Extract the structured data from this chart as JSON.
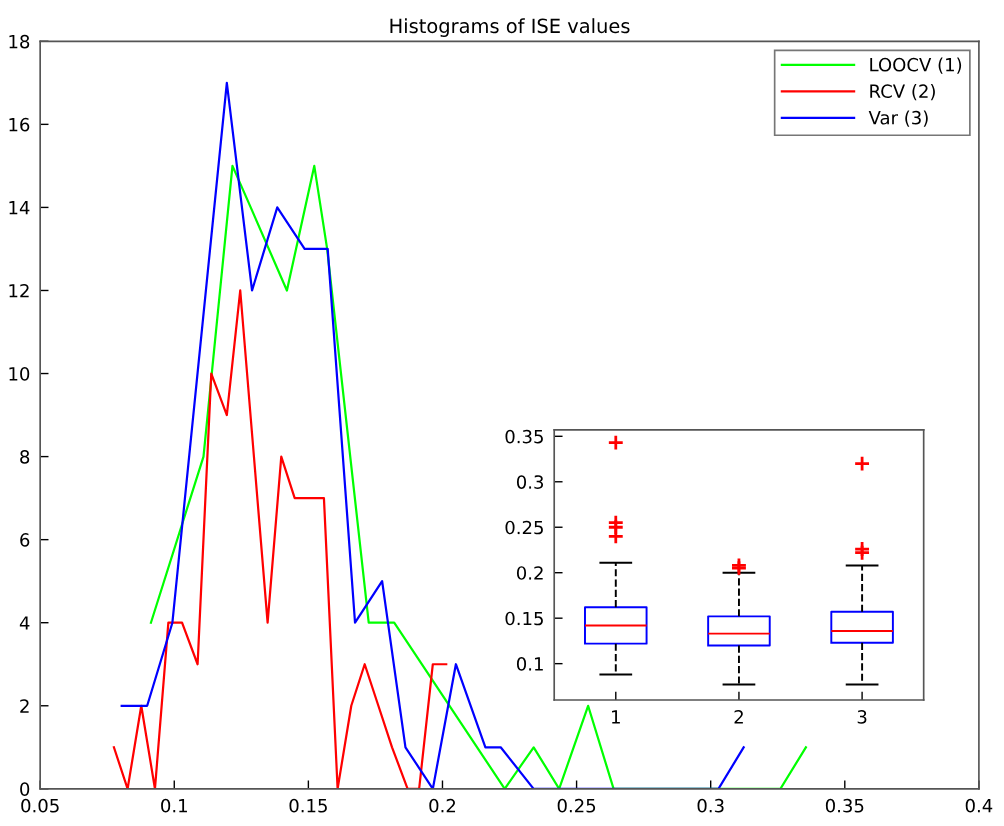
{
  "chart_data": [
    {
      "type": "line",
      "title": "Histograms of ISE values",
      "xlim": [
        0.05,
        0.4
      ],
      "xticks": [
        0.05,
        0.1,
        0.15,
        0.2,
        0.25,
        0.3,
        0.35,
        0.4
      ],
      "ylim": [
        0,
        18
      ],
      "yticks": [
        0,
        2,
        4,
        6,
        8,
        10,
        12,
        14,
        16,
        18
      ],
      "legend": "top right",
      "grid": false,
      "series": [
        {
          "name": "LOOCV (1)",
          "color": "#00ff00",
          "x": [
            0.0913,
            0.1109,
            0.1217,
            0.1285,
            0.142,
            0.1522,
            0.157,
            0.1725,
            0.182,
            0.2232,
            0.234,
            0.2435,
            0.2543,
            0.2638,
            0.326,
            0.3355
          ],
          "values": [
            4,
            8,
            15,
            14,
            12,
            15,
            13,
            4,
            4,
            0,
            1,
            0,
            2,
            0,
            0,
            1
          ]
        },
        {
          "name": "RCV (2)",
          "color": "#ff0000",
          "x": [
            0.0775,
            0.0826,
            0.0877,
            0.0928,
            0.0978,
            0.1029,
            0.1087,
            0.1138,
            0.1196,
            0.1246,
            0.1348,
            0.1399,
            0.1449,
            0.1507,
            0.1558,
            0.1609,
            0.166,
            0.171,
            0.1761,
            0.1812,
            0.187,
            0.1913,
            0.1964,
            0.2014
          ],
          "values": [
            1,
            0,
            2,
            0,
            4,
            4,
            3,
            10,
            9,
            12,
            4,
            8,
            7,
            7,
            7,
            0,
            2,
            3,
            2,
            1,
            0,
            0,
            3,
            3
          ]
        },
        {
          "name": "Var (3)",
          "color": "#0000ff",
          "x": [
            0.0804,
            0.0899,
            0.0993,
            0.1196,
            0.129,
            0.1384,
            0.1486,
            0.1572,
            0.1674,
            0.1775,
            0.1862,
            0.1964,
            0.205,
            0.216,
            0.2217,
            0.234,
            0.3029,
            0.3123
          ],
          "values": [
            2,
            2,
            4,
            17,
            12,
            14,
            13,
            13,
            4,
            5,
            1,
            0,
            3,
            1,
            1,
            0,
            0,
            1
          ]
        }
      ]
    },
    {
      "type": "box",
      "categories": [
        "1",
        "2",
        "3"
      ],
      "ylim": [
        0.06,
        0.357
      ],
      "yticks": [
        0.1,
        0.15,
        0.2,
        0.25,
        0.3,
        0.35
      ],
      "boxes": [
        {
          "low": 0.088,
          "q1": 0.122,
          "median": 0.142,
          "q3": 0.162,
          "high": 0.211,
          "outliers": [
            0.24,
            0.25,
            0.255,
            0.343
          ]
        },
        {
          "low": 0.077,
          "q1": 0.12,
          "median": 0.133,
          "q3": 0.152,
          "high": 0.2,
          "outliers": [
            0.205,
            0.208
          ]
        },
        {
          "low": 0.077,
          "q1": 0.123,
          "median": 0.136,
          "q3": 0.157,
          "high": 0.208,
          "outliers": [
            0.222,
            0.226,
            0.32
          ]
        }
      ]
    }
  ]
}
